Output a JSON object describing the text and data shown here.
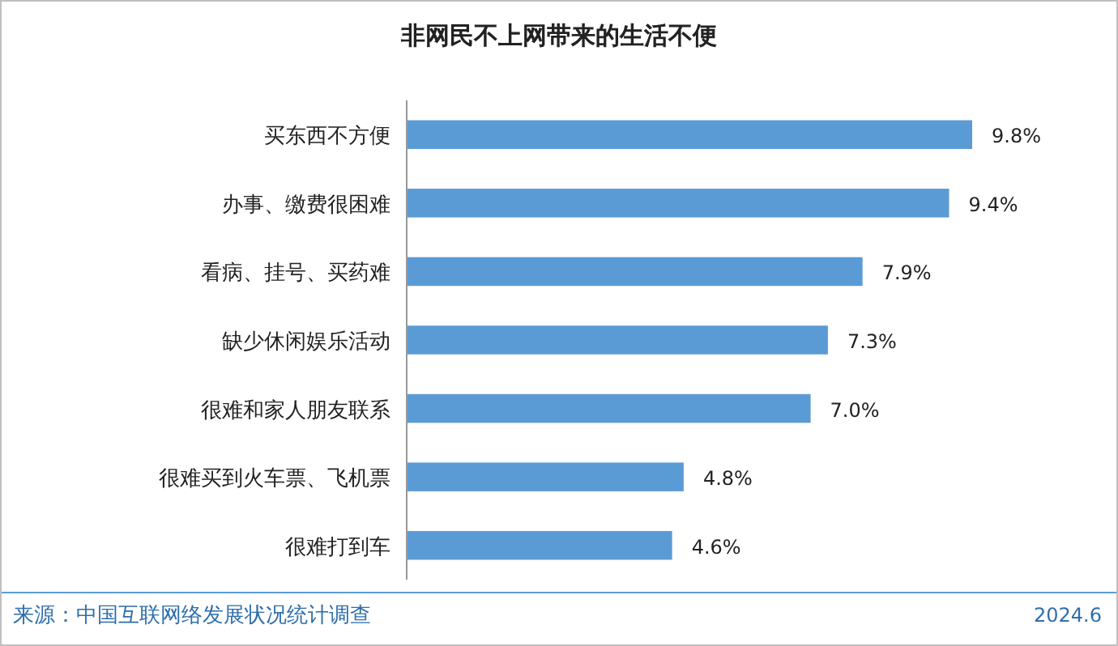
{
  "chart_data": {
    "type": "bar",
    "orientation": "horizontal",
    "title": "非网民不上网带来的生活不便",
    "categories": [
      "买东西不方便",
      "办事、缴费很困难",
      "看病、挂号、买药难",
      "缺少休闲娱乐活动",
      "很难和家人朋友联系",
      "很难买到火车票、飞机票",
      "很难打到车"
    ],
    "values": [
      9.8,
      9.4,
      7.9,
      7.3,
      7.0,
      4.8,
      4.6
    ],
    "value_labels": [
      "9.8%",
      "9.4%",
      "7.9%",
      "7.3%",
      "7.0%",
      "4.8%",
      "4.6%"
    ],
    "color": "#5b9bd5",
    "annotations": [
      "来源：中国互联网络发展状况统计调查",
      "2024.6"
    ]
  }
}
